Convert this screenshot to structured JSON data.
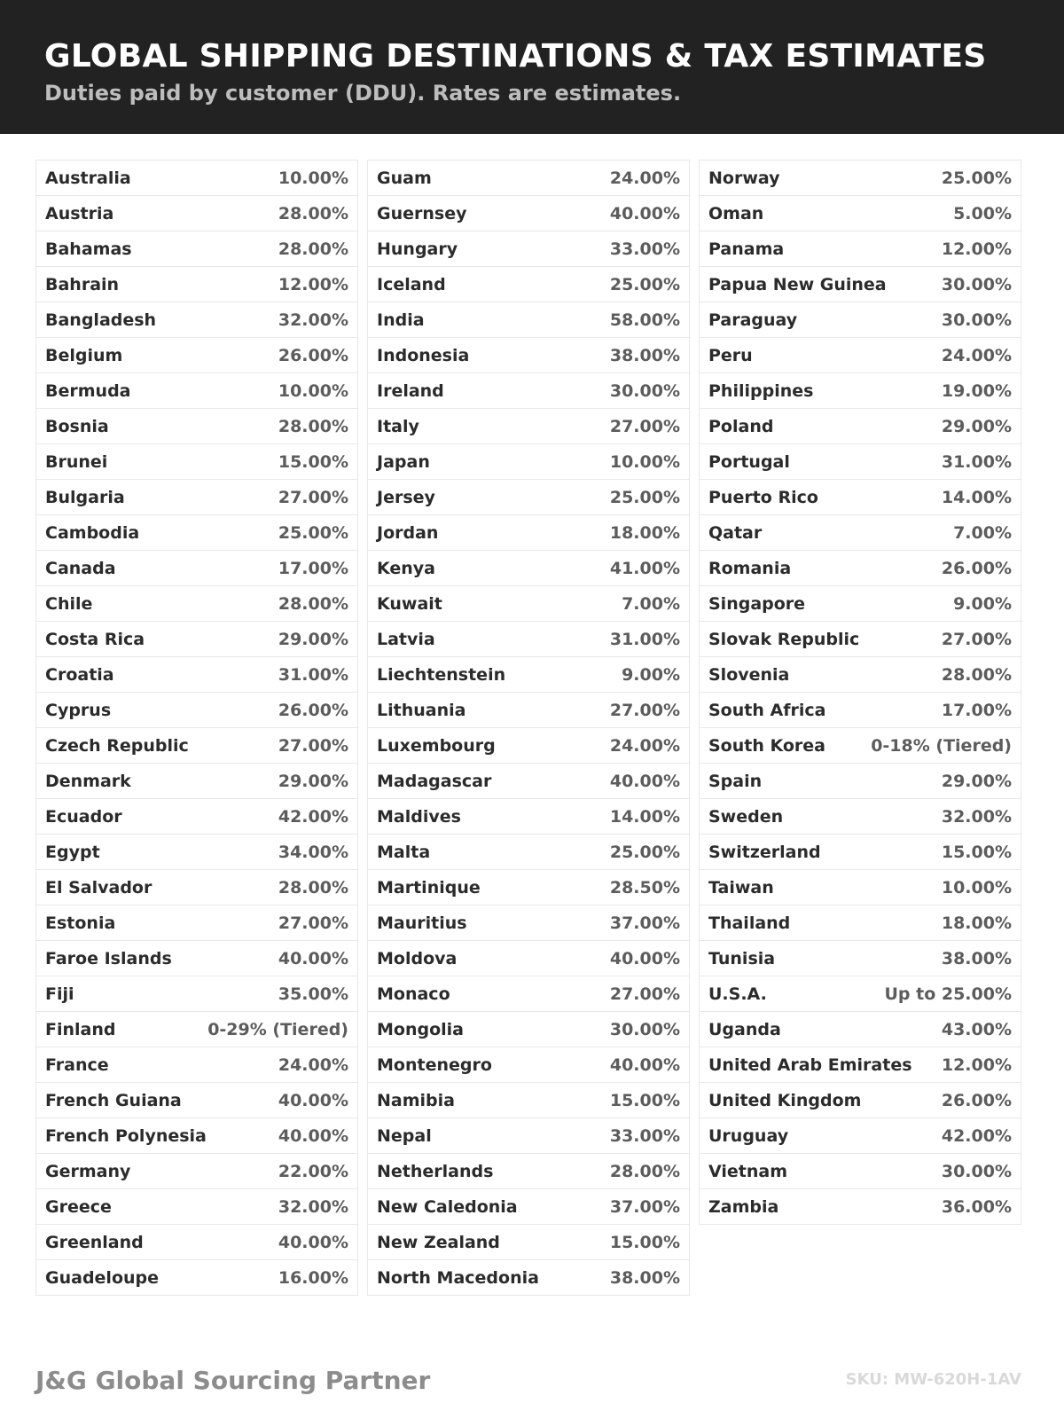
{
  "header": {
    "title": "GLOBAL SHIPPING DESTINATIONS & TAX ESTIMATES",
    "subtitle": "Duties paid by customer (DDU). Rates are estimates."
  },
  "columns": [
    [
      [
        "Australia",
        "10.00%"
      ],
      [
        "Austria",
        "28.00%"
      ],
      [
        "Bahamas",
        "28.00%"
      ],
      [
        "Bahrain",
        "12.00%"
      ],
      [
        "Bangladesh",
        "32.00%"
      ],
      [
        "Belgium",
        "26.00%"
      ],
      [
        "Bermuda",
        "10.00%"
      ],
      [
        "Bosnia",
        "28.00%"
      ],
      [
        "Brunei",
        "15.00%"
      ],
      [
        "Bulgaria",
        "27.00%"
      ],
      [
        "Cambodia",
        "25.00%"
      ],
      [
        "Canada",
        "17.00%"
      ],
      [
        "Chile",
        "28.00%"
      ],
      [
        "Costa Rica",
        "29.00%"
      ],
      [
        "Croatia",
        "31.00%"
      ],
      [
        "Cyprus",
        "26.00%"
      ],
      [
        "Czech Republic",
        "27.00%"
      ],
      [
        "Denmark",
        "29.00%"
      ],
      [
        "Ecuador",
        "42.00%"
      ],
      [
        "Egypt",
        "34.00%"
      ],
      [
        "El Salvador",
        "28.00%"
      ],
      [
        "Estonia",
        "27.00%"
      ],
      [
        "Faroe Islands",
        "40.00%"
      ],
      [
        "Fiji",
        "35.00%"
      ],
      [
        "Finland",
        "0-29% (Tiered)"
      ],
      [
        "France",
        "24.00%"
      ],
      [
        "French Guiana",
        "40.00%"
      ],
      [
        "French Polynesia",
        "40.00%"
      ],
      [
        "Germany",
        "22.00%"
      ],
      [
        "Greece",
        "32.00%"
      ],
      [
        "Greenland",
        "40.00%"
      ],
      [
        "Guadeloupe",
        "16.00%"
      ]
    ],
    [
      [
        "Guam",
        "24.00%"
      ],
      [
        "Guernsey",
        "40.00%"
      ],
      [
        "Hungary",
        "33.00%"
      ],
      [
        "Iceland",
        "25.00%"
      ],
      [
        "India",
        "58.00%"
      ],
      [
        "Indonesia",
        "38.00%"
      ],
      [
        "Ireland",
        "30.00%"
      ],
      [
        "Italy",
        "27.00%"
      ],
      [
        "Japan",
        "10.00%"
      ],
      [
        "Jersey",
        "25.00%"
      ],
      [
        "Jordan",
        "18.00%"
      ],
      [
        "Kenya",
        "41.00%"
      ],
      [
        "Kuwait",
        "7.00%"
      ],
      [
        "Latvia",
        "31.00%"
      ],
      [
        "Liechtenstein",
        "9.00%"
      ],
      [
        "Lithuania",
        "27.00%"
      ],
      [
        "Luxembourg",
        "24.00%"
      ],
      [
        "Madagascar",
        "40.00%"
      ],
      [
        "Maldives",
        "14.00%"
      ],
      [
        "Malta",
        "25.00%"
      ],
      [
        "Martinique",
        "28.50%"
      ],
      [
        "Mauritius",
        "37.00%"
      ],
      [
        "Moldova",
        "40.00%"
      ],
      [
        "Monaco",
        "27.00%"
      ],
      [
        "Mongolia",
        "30.00%"
      ],
      [
        "Montenegro",
        "40.00%"
      ],
      [
        "Namibia",
        "15.00%"
      ],
      [
        "Nepal",
        "33.00%"
      ],
      [
        "Netherlands",
        "28.00%"
      ],
      [
        "New Caledonia",
        "37.00%"
      ],
      [
        "New Zealand",
        "15.00%"
      ],
      [
        "North Macedonia",
        "38.00%"
      ]
    ],
    [
      [
        "Norway",
        "25.00%"
      ],
      [
        "Oman",
        "5.00%"
      ],
      [
        "Panama",
        "12.00%"
      ],
      [
        "Papua New Guinea",
        "30.00%"
      ],
      [
        "Paraguay",
        "30.00%"
      ],
      [
        "Peru",
        "24.00%"
      ],
      [
        "Philippines",
        "19.00%"
      ],
      [
        "Poland",
        "29.00%"
      ],
      [
        "Portugal",
        "31.00%"
      ],
      [
        "Puerto Rico",
        "14.00%"
      ],
      [
        "Qatar",
        "7.00%"
      ],
      [
        "Romania",
        "26.00%"
      ],
      [
        "Singapore",
        "9.00%"
      ],
      [
        "Slovak Republic",
        "27.00%"
      ],
      [
        "Slovenia",
        "28.00%"
      ],
      [
        "South Africa",
        "17.00%"
      ],
      [
        "South Korea",
        "0-18% (Tiered)"
      ],
      [
        "Spain",
        "29.00%"
      ],
      [
        "Sweden",
        "32.00%"
      ],
      [
        "Switzerland",
        "15.00%"
      ],
      [
        "Taiwan",
        "10.00%"
      ],
      [
        "Thailand",
        "18.00%"
      ],
      [
        "Tunisia",
        "38.00%"
      ],
      [
        "U.S.A.",
        "Up to 25.00%"
      ],
      [
        "Uganda",
        "43.00%"
      ],
      [
        "United Arab Emirates",
        "12.00%"
      ],
      [
        "United Kingdom",
        "26.00%"
      ],
      [
        "Uruguay",
        "42.00%"
      ],
      [
        "Vietnam",
        "30.00%"
      ],
      [
        "Zambia",
        "36.00%"
      ]
    ]
  ],
  "footer": {
    "brand": "J&G Global Sourcing Partner",
    "sku": "SKU: MW-620H-1AV"
  }
}
